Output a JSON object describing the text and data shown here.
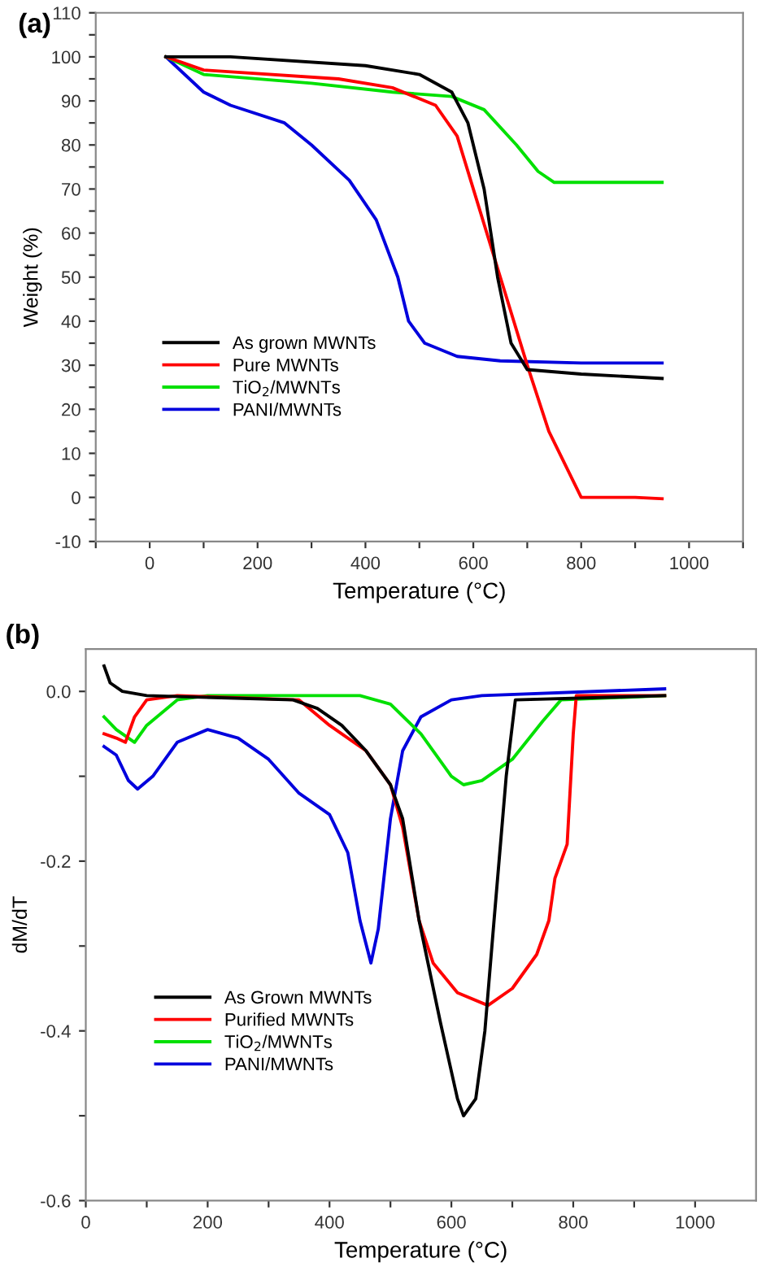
{
  "chart_data": [
    {
      "type": "line",
      "xlabel": "Temperature (°C)",
      "ylabel": "Weight (%)",
      "annotations": [
        "(a)"
      ],
      "xlim": [
        -100,
        1100
      ],
      "ylim": [
        -10,
        110
      ],
      "xticks": [
        {
          "value": -100,
          "label": null
        },
        0,
        {
          "value": 100,
          "label": null
        },
        200,
        {
          "value": 300,
          "label": null
        },
        400,
        {
          "value": 500,
          "label": null
        },
        600,
        {
          "value": 700,
          "label": null
        },
        800,
        {
          "value": 900,
          "label": null
        },
        1000,
        {
          "value": 1100,
          "label": null
        }
      ],
      "yticks": [
        -10,
        {
          "value": -5,
          "label": null
        },
        0,
        {
          "value": 5,
          "label": null
        },
        10,
        {
          "value": 15,
          "label": null
        },
        20,
        {
          "value": 25,
          "label": null
        },
        30,
        {
          "value": 35,
          "label": null
        },
        40,
        {
          "value": 45,
          "label": null
        },
        50,
        {
          "value": 55,
          "label": null
        },
        60,
        {
          "value": 65,
          "label": null
        },
        70,
        {
          "value": 75,
          "label": null
        },
        80,
        {
          "value": 85,
          "label": null
        },
        90,
        {
          "value": 95,
          "label": null
        },
        100,
        {
          "value": 105,
          "label": null
        },
        110
      ],
      "grid": false,
      "legend": "lower left",
      "marker": "none",
      "line_style": "solid",
      "series": [
        {
          "name": "As grown MWNTs",
          "color": "#000000",
          "x": [
            30,
            150,
            400,
            500,
            560,
            590,
            620,
            645,
            670,
            700,
            800,
            950
          ],
          "values": [
            100,
            100,
            98,
            96,
            92,
            85,
            70,
            50,
            35,
            29,
            28,
            27
          ]
        },
        {
          "name": "Pure MWNTs",
          "color": "#ff0000",
          "x": [
            30,
            100,
            350,
            450,
            530,
            570,
            600,
            650,
            700,
            740,
            800,
            900,
            950
          ],
          "values": [
            100,
            97,
            95,
            93,
            89,
            82,
            70,
            50,
            30,
            15,
            0,
            0,
            -0.3
          ]
        },
        {
          "name": "TiO$_{2}$/MWNTs",
          "color": "#00e000",
          "x": [
            30,
            100,
            300,
            450,
            560,
            620,
            680,
            720,
            750,
            950
          ],
          "values": [
            100,
            96,
            94,
            92,
            91,
            88,
            80,
            74,
            71.5,
            71.5
          ]
        },
        {
          "name": "PANI/MWNTs",
          "color": "#0000dd",
          "x": [
            30,
            100,
            150,
            250,
            300,
            370,
            420,
            460,
            480,
            510,
            570,
            650,
            800,
            950
          ],
          "values": [
            100,
            92,
            89,
            85,
            80,
            72,
            63,
            50,
            40,
            35,
            32,
            31,
            30.5,
            30.5
          ]
        }
      ]
    },
    {
      "type": "line",
      "xlabel": "Temperature (°C)",
      "ylabel": "dM/dT",
      "annotations": [
        "(b)"
      ],
      "xlim": [
        0,
        1100
      ],
      "ylim": [
        -0.6,
        0.05
      ],
      "xticks": [
        0,
        {
          "value": 100,
          "label": null
        },
        200,
        {
          "value": 300,
          "label": null
        },
        400,
        {
          "value": 500,
          "label": null
        },
        600,
        {
          "value": 700,
          "label": null
        },
        800,
        {
          "value": 900,
          "label": null
        },
        1000
      ],
      "yticks": [
        -0.6,
        {
          "value": -0.5,
          "label": null
        },
        -0.4,
        {
          "value": -0.3,
          "label": null
        },
        -0.2,
        {
          "value": -0.1,
          "label": null
        },
        {
          "value": 0,
          "label": "0.0"
        }
      ],
      "grid": false,
      "legend": "lower left",
      "marker": "none",
      "line_style": "solid",
      "series": [
        {
          "name": "As Grown MWNTs",
          "color": "#000000",
          "x": [
            30,
            40,
            60,
            100,
            340,
            380,
            420,
            460,
            500,
            520,
            547,
            582,
            610,
            620,
            640,
            655,
            670,
            690,
            705,
            950
          ],
          "values": [
            0.03,
            0.01,
            0,
            -0.005,
            -0.01,
            -0.02,
            -0.04,
            -0.07,
            -0.11,
            -0.15,
            -0.27,
            -0.39,
            -0.48,
            -0.5,
            -0.48,
            -0.4,
            -0.27,
            -0.1,
            -0.01,
            -0.005
          ]
        },
        {
          "name": "Purified MWNTs",
          "color": "#ff0000",
          "x": [
            30,
            50,
            65,
            80,
            100,
            150,
            350,
            400,
            420,
            460,
            500,
            520,
            547,
            570,
            610,
            660,
            700,
            740,
            760,
            770,
            790,
            800,
            805,
            950
          ],
          "values": [
            -0.05,
            -0.055,
            -0.06,
            -0.03,
            -0.01,
            -0.005,
            -0.01,
            -0.04,
            -0.05,
            -0.07,
            -0.11,
            -0.16,
            -0.27,
            -0.32,
            -0.355,
            -0.37,
            -0.35,
            -0.31,
            -0.27,
            -0.22,
            -0.18,
            -0.05,
            -0.005,
            -0.005
          ]
        },
        {
          "name": "TiO$_{2}$/MWNTs",
          "color": "#00e000",
          "x": [
            30,
            50,
            80,
            100,
            150,
            200,
            450,
            500,
            550,
            600,
            620,
            650,
            700,
            750,
            780,
            950
          ],
          "values": [
            -0.03,
            -0.045,
            -0.06,
            -0.04,
            -0.01,
            -0.005,
            -0.005,
            -0.015,
            -0.05,
            -0.1,
            -0.11,
            -0.105,
            -0.08,
            -0.035,
            -0.01,
            -0.005
          ]
        },
        {
          "name": "PANI/MWNTs",
          "color": "#0000dd",
          "x": [
            30,
            50,
            70,
            85,
            110,
            150,
            200,
            250,
            300,
            350,
            400,
            430,
            450,
            468,
            480,
            500,
            520,
            550,
            600,
            650,
            950
          ],
          "values": [
            -0.065,
            -0.075,
            -0.105,
            -0.115,
            -0.1,
            -0.06,
            -0.045,
            -0.055,
            -0.08,
            -0.12,
            -0.145,
            -0.19,
            -0.27,
            -0.32,
            -0.28,
            -0.15,
            -0.07,
            -0.03,
            -0.01,
            -0.005,
            0.003
          ]
        }
      ]
    }
  ]
}
